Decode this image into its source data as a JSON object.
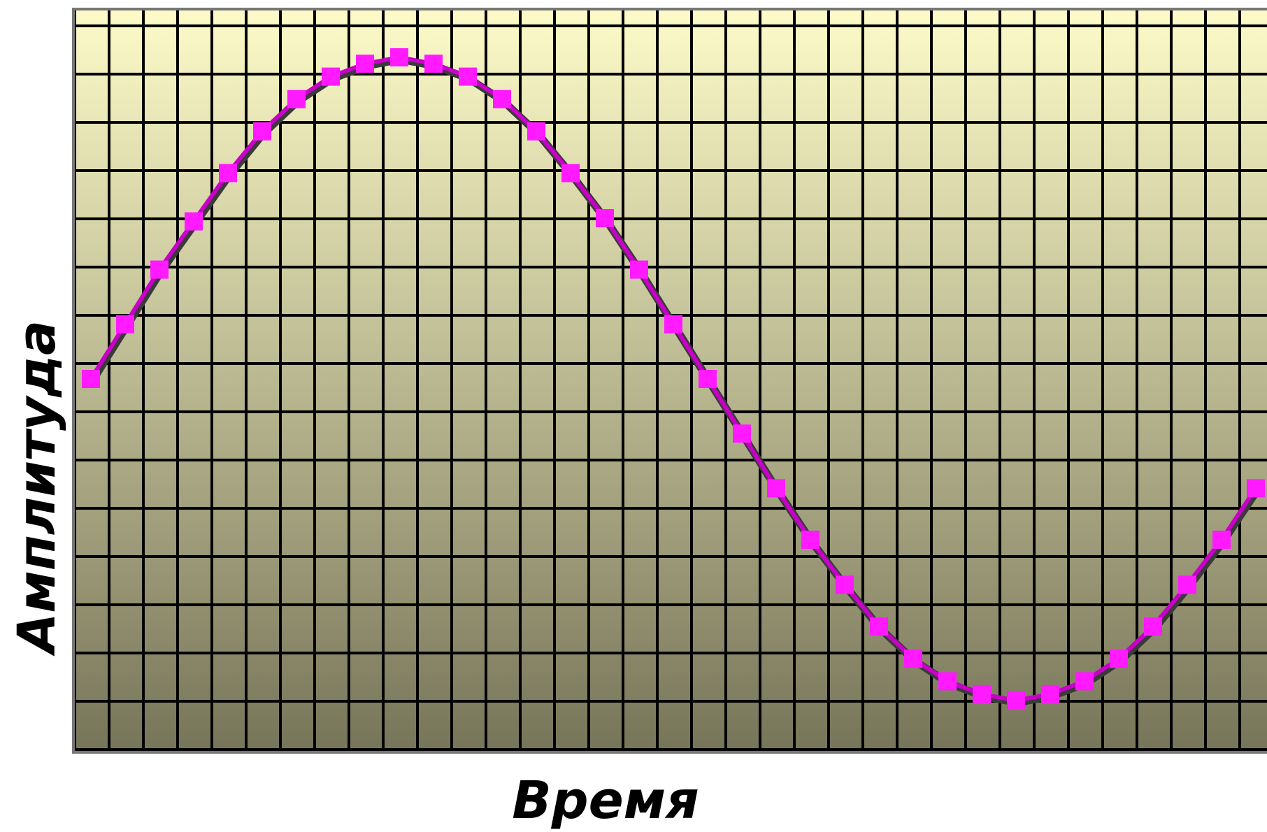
{
  "chart_data": {
    "type": "line",
    "title": "",
    "xlabel": "Время",
    "ylabel": "Амплитуда",
    "grid": true,
    "legend": "none",
    "series": [
      {
        "x": [
          0,
          1,
          2,
          3,
          4,
          5,
          6,
          7,
          8,
          9,
          10,
          11,
          12,
          13,
          14,
          15,
          16,
          17,
          18,
          19,
          20,
          21,
          22,
          23,
          24,
          25,
          26,
          27,
          28,
          29,
          30,
          31,
          32,
          33,
          34
        ],
        "values": [
          0.0,
          0.17,
          0.34,
          0.49,
          0.64,
          0.77,
          0.87,
          0.94,
          0.98,
          1.0,
          0.98,
          0.94,
          0.87,
          0.77,
          0.64,
          0.5,
          0.34,
          0.17,
          0.0,
          -0.17,
          -0.34,
          -0.5,
          -0.64,
          -0.77,
          -0.87,
          -0.94,
          -0.98,
          -1.0,
          -0.98,
          -0.94,
          -0.87,
          -0.77,
          -0.64,
          -0.5,
          -0.34
        ]
      }
    ]
  },
  "colors": {
    "background_top": "#fdfbc8",
    "background_bottom": "#777559",
    "grid_line": "#000000",
    "plot_border": "#777777",
    "line_shadow": "#3a3a3a",
    "line": "#c800c8",
    "marker": "#ff1aff"
  }
}
